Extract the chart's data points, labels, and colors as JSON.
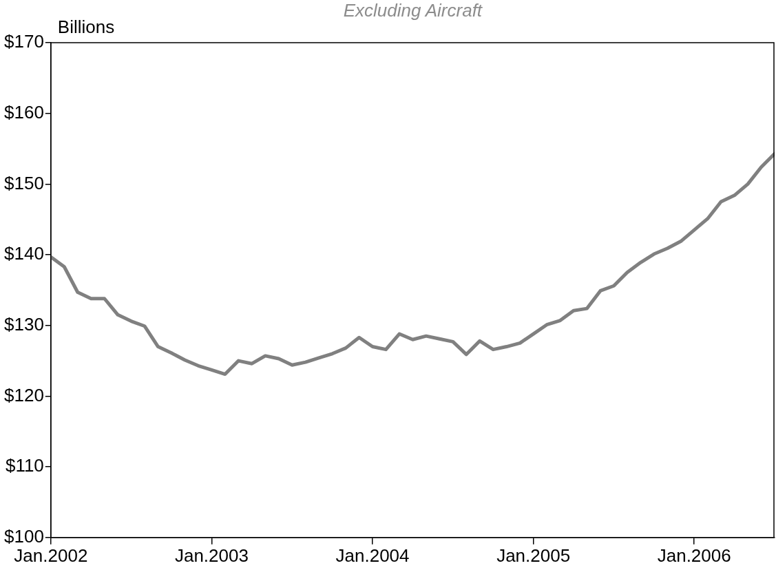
{
  "chart_data": {
    "type": "line",
    "subtitle": "Excluding Aircraft",
    "ylabel": "Billions",
    "x": [
      "2002-01",
      "2002-02",
      "2002-03",
      "2002-04",
      "2002-05",
      "2002-06",
      "2002-07",
      "2002-08",
      "2002-09",
      "2002-10",
      "2002-11",
      "2002-12",
      "2003-01",
      "2003-02",
      "2003-03",
      "2003-04",
      "2003-05",
      "2003-06",
      "2003-07",
      "2003-08",
      "2003-09",
      "2003-10",
      "2003-11",
      "2003-12",
      "2004-01",
      "2004-02",
      "2004-03",
      "2004-04",
      "2004-05",
      "2004-06",
      "2004-07",
      "2004-08",
      "2004-09",
      "2004-10",
      "2004-11",
      "2004-12",
      "2005-01",
      "2005-02",
      "2005-03",
      "2005-04",
      "2005-05",
      "2005-06",
      "2005-07",
      "2005-08",
      "2005-09",
      "2005-10",
      "2005-11",
      "2005-12",
      "2006-01",
      "2006-02",
      "2006-03",
      "2006-04",
      "2006-05",
      "2006-06",
      "2006-07"
    ],
    "series": [
      {
        "color": "#808080",
        "values": [
          139.7,
          138.3,
          134.7,
          133.8,
          133.8,
          131.5,
          130.6,
          129.9,
          127.0,
          126.1,
          125.1,
          124.3,
          123.7,
          123.1,
          125.0,
          124.6,
          125.7,
          125.3,
          124.4,
          124.8,
          125.4,
          126.0,
          126.8,
          128.3,
          127.0,
          126.6,
          128.8,
          128.0,
          128.5,
          128.1,
          127.7,
          125.9,
          127.8,
          126.6,
          127.0,
          127.5,
          128.8,
          130.1,
          130.7,
          132.1,
          132.4,
          134.9,
          135.6,
          137.5,
          138.9,
          140.1,
          140.9,
          141.9,
          143.5,
          145.1,
          147.5,
          148.4,
          150.0,
          152.4,
          154.3
        ]
      }
    ],
    "xlim": [
      "2002-01",
      "2006-07"
    ],
    "xticks": [
      {
        "value": "2002-01",
        "label": "Jan.2002"
      },
      {
        "value": "2003-01",
        "label": "Jan.2003"
      },
      {
        "value": "2004-01",
        "label": "Jan.2004"
      },
      {
        "value": "2005-01",
        "label": "Jan.2005"
      },
      {
        "value": "2006-01",
        "label": "Jan.2006"
      }
    ],
    "ylim": [
      100,
      170
    ],
    "yticks": [
      {
        "value": 100,
        "label": "$100"
      },
      {
        "value": 110,
        "label": "$110"
      },
      {
        "value": 120,
        "label": "$120"
      },
      {
        "value": 130,
        "label": "$130"
      },
      {
        "value": 140,
        "label": "$140"
      },
      {
        "value": 150,
        "label": "$150"
      },
      {
        "value": 160,
        "label": "$160"
      },
      {
        "value": 170,
        "label": "$170"
      }
    ],
    "marker": "none",
    "line_style": "solid",
    "legend": false
  }
}
